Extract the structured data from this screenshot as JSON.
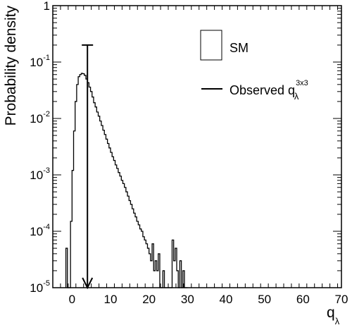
{
  "chart_data": {
    "type": "histogram",
    "title": "",
    "xlabel": "q",
    "xlabel_subscript": "λ",
    "ylabel": "Probability density",
    "xlim": [
      -5,
      70
    ],
    "ylim": [
      1e-05,
      1
    ],
    "y_scale": "log",
    "x_ticks": [
      0,
      10,
      20,
      30,
      40,
      50,
      60,
      70
    ],
    "y_ticks": [
      {
        "value": 1e-05,
        "base": "10",
        "exp": "-5"
      },
      {
        "value": 0.0001,
        "base": "10",
        "exp": "-4"
      },
      {
        "value": 0.001,
        "base": "10",
        "exp": "-3"
      },
      {
        "value": 0.01,
        "base": "10",
        "exp": "-2"
      },
      {
        "value": 0.1,
        "base": "10",
        "exp": "-1"
      },
      {
        "value": 1,
        "base": "1",
        "exp": ""
      }
    ],
    "grid": false,
    "legend_position": "top-right",
    "series": [
      {
        "name": "SM",
        "kind": "step-histogram",
        "color": "#000000",
        "x": [
          -1.6,
          -1.2,
          -0.8,
          -0.4,
          0.0,
          0.4,
          0.8,
          1.2,
          1.6,
          2.0,
          2.4,
          2.8,
          3.2,
          3.6,
          4.0,
          4.4,
          4.8,
          5.2,
          5.6,
          6.0,
          6.4,
          6.8,
          7.2,
          7.6,
          8.0,
          8.4,
          8.8,
          9.2,
          9.6,
          10.0,
          10.4,
          10.8,
          11.2,
          11.6,
          12.0,
          12.4,
          12.8,
          13.2,
          13.6,
          14.0,
          14.4,
          14.8,
          15.2,
          15.6,
          16.0,
          16.4,
          16.8,
          17.2,
          17.6,
          18.0,
          18.4,
          18.8,
          19.2,
          19.6,
          20.0,
          20.4,
          20.8,
          21.2,
          21.6,
          22.0,
          22.4,
          22.8,
          23.2,
          23.6,
          24.0,
          24.4,
          24.8,
          25.2,
          25.6,
          26.0,
          26.4,
          26.8,
          27.2,
          27.6,
          28.0,
          28.4,
          28.8,
          29.2,
          29.6
        ],
        "y": [
          5e-05,
          0,
          0,
          0.00015,
          0.0012,
          0.006,
          0.02,
          0.04,
          0.055,
          0.06,
          0.063,
          0.062,
          0.058,
          0.05,
          0.043,
          0.036,
          0.03,
          0.024,
          0.019,
          0.016,
          0.013,
          0.011,
          0.009,
          0.0075,
          0.0062,
          0.0052,
          0.0043,
          0.0036,
          0.003,
          0.0025,
          0.0021,
          0.0018,
          0.0015,
          0.0013,
          0.0011,
          0.00095,
          0.0008,
          0.0007,
          0.0006,
          0.0005,
          0.00042,
          0.00035,
          0.0003,
          0.00025,
          0.00021,
          0.00018,
          0.00015,
          0.00013,
          0.00011,
          0.0001,
          8e-05,
          7e-05,
          6e-05,
          5e-05,
          4e-05,
          3e-05,
          6e-05,
          2e-05,
          3e-05,
          2e-05,
          4e-05,
          1e-05,
          0,
          2e-05,
          0,
          0,
          0,
          0,
          0,
          7e-05,
          3e-05,
          5e-05,
          2e-05,
          0,
          3e-05,
          1e-05,
          2e-05,
          0,
          0
        ]
      }
    ],
    "observed": {
      "name": "Observed q",
      "name_superscript": "3x3",
      "name_subscript": "λ",
      "x": 4.0,
      "y_top": 0.2,
      "y_bottom": 1e-05
    }
  }
}
